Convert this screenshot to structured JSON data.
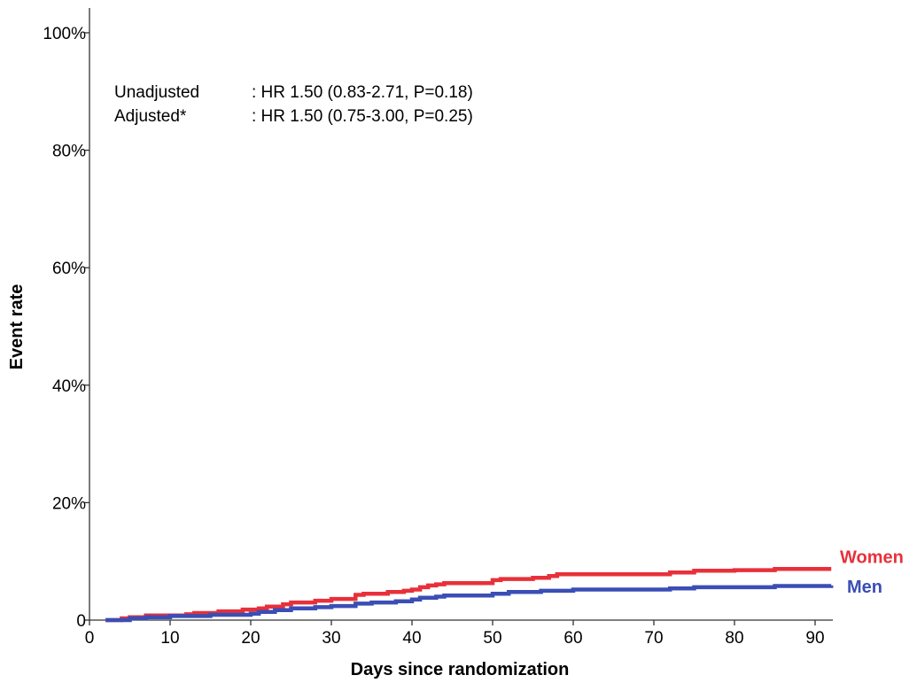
{
  "chart_data": {
    "type": "line",
    "title": "",
    "xlabel": "Days since randomization",
    "ylabel": "Event rate",
    "xlim": [
      0,
      92
    ],
    "ylim": [
      0,
      100
    ],
    "x_ticks": [
      0,
      10,
      20,
      30,
      40,
      50,
      60,
      70,
      80,
      90
    ],
    "x_tick_labels": [
      "0",
      "10",
      "20",
      "30",
      "40",
      "50",
      "60",
      "70",
      "80",
      "90"
    ],
    "y_ticks": [
      0,
      20,
      40,
      60,
      80,
      100
    ],
    "y_tick_labels": [
      "0",
      "20%",
      "40%",
      "60%",
      "80%",
      "100%"
    ],
    "grid": false,
    "annotations": [
      {
        "label": "Unadjusted",
        "text": ": HR 1.50 (0.83-2.71, P=0.18)"
      },
      {
        "label": "Adjusted*",
        "text": ": HR 1.50 (0.75-3.00, P=0.25)"
      }
    ],
    "series": [
      {
        "name": "Women",
        "color": "#e8303a",
        "step": true,
        "x": [
          2,
          4,
          5,
          7,
          12,
          13,
          16,
          19,
          21,
          22,
          24,
          25,
          28,
          30,
          33,
          34,
          37,
          39,
          40,
          41,
          42,
          43,
          44,
          50,
          51,
          55,
          57,
          58,
          72,
          75,
          80,
          85,
          92
        ],
        "y": [
          0,
          0.3,
          0.5,
          0.8,
          1.0,
          1.2,
          1.5,
          1.8,
          2.0,
          2.3,
          2.7,
          3.0,
          3.3,
          3.6,
          4.3,
          4.5,
          4.8,
          5.0,
          5.2,
          5.6,
          5.9,
          6.1,
          6.3,
          6.8,
          7.0,
          7.2,
          7.5,
          7.8,
          8.1,
          8.4,
          8.5,
          8.7,
          8.7
        ]
      },
      {
        "name": "Men",
        "color": "#3a4eb5",
        "step": true,
        "x": [
          2,
          5,
          7,
          10,
          15,
          20,
          21,
          23,
          25,
          28,
          30,
          33,
          35,
          38,
          40,
          41,
          43,
          44,
          50,
          52,
          56,
          60,
          72,
          75,
          85,
          92
        ],
        "y": [
          0,
          0.3,
          0.5,
          0.7,
          0.9,
          1.1,
          1.4,
          1.7,
          2.0,
          2.2,
          2.4,
          2.8,
          3.0,
          3.2,
          3.5,
          3.8,
          4.0,
          4.2,
          4.5,
          4.8,
          5.0,
          5.2,
          5.4,
          5.6,
          5.8,
          5.9
        ]
      }
    ]
  }
}
